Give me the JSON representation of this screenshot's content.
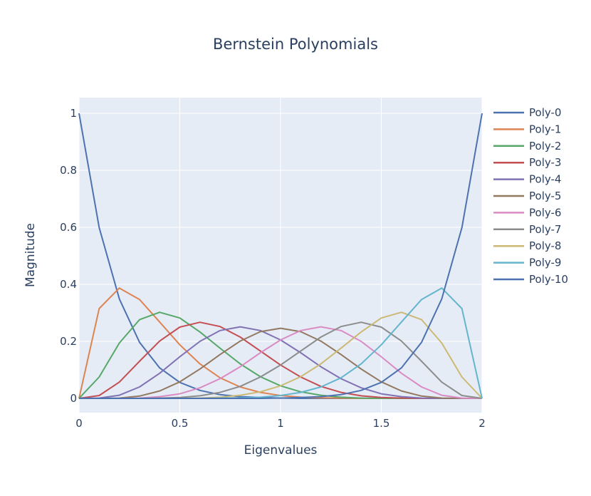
{
  "chart_data": {
    "type": "line",
    "title": "Bernstein Polynomials",
    "xlabel": "Eigenvalues",
    "ylabel": "Magnitude",
    "xlim": [
      0,
      2
    ],
    "ylim": [
      -0.05,
      1.055
    ],
    "x_ticks": [
      {
        "value": 0,
        "label": "0"
      },
      {
        "value": 0.5,
        "label": "0.5"
      },
      {
        "value": 1,
        "label": "1"
      },
      {
        "value": 1.5,
        "label": "1.5"
      },
      {
        "value": 2,
        "label": "2"
      }
    ],
    "y_ticks": [
      {
        "value": 0,
        "label": "0"
      },
      {
        "value": 0.2,
        "label": "0.2"
      },
      {
        "value": 0.4,
        "label": "0.4"
      },
      {
        "value": 0.6,
        "label": "0.6"
      },
      {
        "value": 0.8,
        "label": "0.8"
      },
      {
        "value": 1,
        "label": "1"
      }
    ],
    "grid": true,
    "legend_position": "right",
    "x": [
      0,
      0.1,
      0.2,
      0.3,
      0.4,
      0.5,
      0.6,
      0.7,
      0.8,
      0.9,
      1.0,
      1.1,
      1.2,
      1.3,
      1.4,
      1.5,
      1.6,
      1.7,
      1.8,
      1.9,
      2.0
    ],
    "series": [
      {
        "name": "Poly-0",
        "color": "#4C72B0",
        "values": [
          1,
          0.599,
          0.349,
          0.197,
          0.107,
          0.056,
          0.028,
          0.013,
          0.006,
          0.003,
          0.001,
          0,
          0,
          0,
          0,
          0,
          0,
          0,
          0,
          0,
          0
        ]
      },
      {
        "name": "Poly-1",
        "color": "#DD8452",
        "values": [
          0,
          0.315,
          0.387,
          0.347,
          0.268,
          0.188,
          0.121,
          0.072,
          0.04,
          0.021,
          0.01,
          0.004,
          0.002,
          0.001,
          0,
          0,
          0,
          0,
          0,
          0,
          0
        ]
      },
      {
        "name": "Poly-2",
        "color": "#55A868",
        "values": [
          0,
          0.075,
          0.194,
          0.276,
          0.302,
          0.282,
          0.233,
          0.176,
          0.121,
          0.076,
          0.044,
          0.023,
          0.011,
          0.004,
          0.001,
          0,
          0,
          0,
          0,
          0,
          0
        ]
      },
      {
        "name": "Poly-3",
        "color": "#C44E52",
        "values": [
          0,
          0.01,
          0.057,
          0.13,
          0.201,
          0.25,
          0.267,
          0.252,
          0.215,
          0.166,
          0.117,
          0.075,
          0.042,
          0.021,
          0.009,
          0.003,
          0.001,
          0,
          0,
          0,
          0
        ]
      },
      {
        "name": "Poly-4",
        "color": "#8172B3",
        "values": [
          0,
          0.001,
          0.011,
          0.04,
          0.088,
          0.146,
          0.2,
          0.238,
          0.251,
          0.238,
          0.205,
          0.16,
          0.111,
          0.069,
          0.037,
          0.016,
          0.006,
          0.001,
          0,
          0,
          0
        ]
      },
      {
        "name": "Poly-5",
        "color": "#937860",
        "values": [
          0,
          0,
          0.001,
          0.008,
          0.026,
          0.058,
          0.103,
          0.154,
          0.201,
          0.234,
          0.246,
          0.234,
          0.201,
          0.154,
          0.103,
          0.058,
          0.026,
          0.008,
          0.001,
          0,
          0
        ]
      },
      {
        "name": "Poly-6",
        "color": "#DA8BC3",
        "values": [
          0,
          0,
          0,
          0.001,
          0.006,
          0.016,
          0.037,
          0.069,
          0.111,
          0.16,
          0.205,
          0.238,
          0.251,
          0.238,
          0.2,
          0.146,
          0.088,
          0.04,
          0.011,
          0.001,
          0
        ]
      },
      {
        "name": "Poly-7",
        "color": "#8C8C8C",
        "values": [
          0,
          0,
          0,
          0,
          0.001,
          0.003,
          0.009,
          0.021,
          0.042,
          0.075,
          0.117,
          0.166,
          0.215,
          0.252,
          0.267,
          0.25,
          0.201,
          0.13,
          0.057,
          0.01,
          0
        ]
      },
      {
        "name": "Poly-8",
        "color": "#CCB974",
        "values": [
          0,
          0,
          0,
          0,
          0,
          0,
          0.001,
          0.004,
          0.011,
          0.023,
          0.044,
          0.076,
          0.121,
          0.176,
          0.233,
          0.282,
          0.302,
          0.276,
          0.194,
          0.075,
          0
        ]
      },
      {
        "name": "Poly-9",
        "color": "#64B5CD",
        "values": [
          0,
          0,
          0,
          0,
          0,
          0,
          0,
          0.001,
          0.002,
          0.004,
          0.01,
          0.021,
          0.04,
          0.072,
          0.121,
          0.188,
          0.268,
          0.347,
          0.387,
          0.315,
          0
        ]
      },
      {
        "name": "Poly-10",
        "color": "#4C72B0",
        "values": [
          0,
          0,
          0,
          0,
          0,
          0,
          0,
          0,
          0,
          0,
          0.001,
          0.003,
          0.006,
          0.013,
          0.028,
          0.056,
          0.107,
          0.197,
          0.349,
          0.599,
          1
        ]
      }
    ]
  }
}
